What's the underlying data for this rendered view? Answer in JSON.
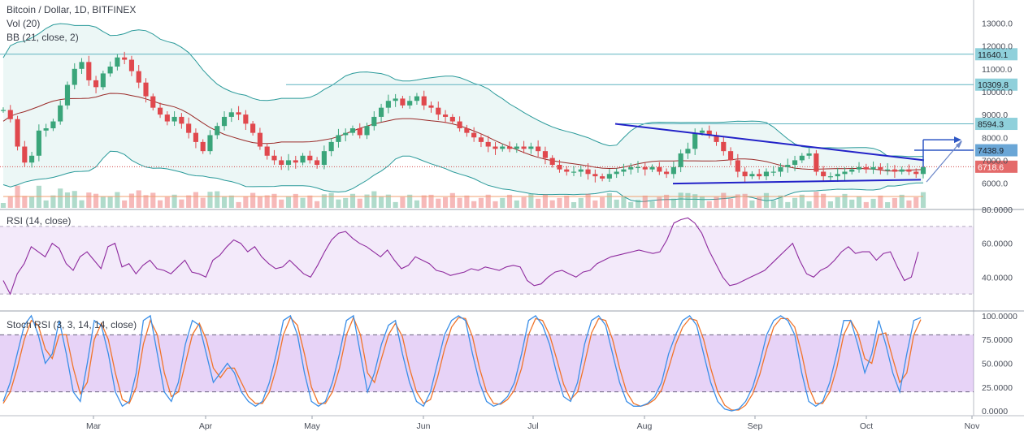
{
  "chart_data": [
    {
      "type": "candlestick",
      "panel": "price",
      "title": "Bitcoin / Dollar, 1D, BITFINEX",
      "indicators": [
        "Vol (20)",
        "BB (21, close, 2)"
      ],
      "y_ticks": [
        "13000.0",
        "12000.0",
        "11000.0",
        "10000.0",
        "9000.0",
        "8000.0",
        "7000.0",
        "6000.0"
      ],
      "y_tick_values": [
        13000,
        12000,
        11000,
        10000,
        9000,
        8000,
        7000,
        6000
      ],
      "y_range": [
        5700,
        13800
      ],
      "horizontal_levels": [
        {
          "label": "11640.1",
          "value": 11640.1
        },
        {
          "label": "10309.8",
          "value": 10309.8
        },
        {
          "label": "8594.3",
          "value": 8594.3
        },
        {
          "label": "7438.9",
          "value": 7438.9
        }
      ],
      "last_price": {
        "label": "6718.6",
        "value": 6718.6
      },
      "close_series": [
        9200,
        8800,
        7600,
        6900,
        7200,
        8300,
        8400,
        8700,
        9400,
        10300,
        11000,
        11300,
        10500,
        10200,
        10800,
        11100,
        11500,
        11400,
        10900,
        10400,
        9800,
        9300,
        9000,
        8700,
        8900,
        8600,
        8200,
        7800,
        7400,
        8100,
        8500,
        8900,
        9100,
        9000,
        8600,
        8200,
        7600,
        7200,
        7000,
        6800,
        7000,
        6900,
        7200,
        7000,
        6800,
        7400,
        7800,
        8100,
        8200,
        8400,
        8100,
        8500,
        8900,
        9300,
        9600,
        9700,
        9400,
        9600,
        9800,
        9400,
        9300,
        9000,
        8900,
        8700,
        8400,
        8200,
        8000,
        7800,
        7600,
        7500,
        7600,
        7500,
        7600,
        7500,
        7600,
        7400,
        7100,
        6800,
        6600,
        6500,
        6500,
        6600,
        6400,
        6300,
        6200,
        6400,
        6500,
        6600,
        6700,
        6700,
        6600,
        6700,
        6500,
        6400,
        6700,
        7300,
        7500,
        8200,
        8300,
        8100,
        7800,
        7400,
        7000,
        6500,
        6300,
        6400,
        6300,
        6500,
        6500,
        6700,
        6800,
        7000,
        7200,
        7300,
        6500,
        6300,
        6300,
        6400,
        6500,
        6600,
        6700,
        6600,
        6700,
        6600,
        6600,
        6500,
        6600,
        6500,
        6400,
        6700
      ],
      "x_labels": [
        "Mar",
        "Apr",
        "May",
        "Jun",
        "Jul",
        "Aug",
        "Sep",
        "Oct",
        "Nov"
      ]
    },
    {
      "type": "line",
      "panel": "rsi",
      "title": "RSI (14, close)",
      "y_ticks": [
        "80.0000",
        "60.0000",
        "40.0000"
      ],
      "y_tick_values": [
        80,
        60,
        40
      ],
      "y_range": [
        20,
        80
      ],
      "band": [
        30,
        70
      ],
      "series": [
        {
          "values": [
            38,
            30,
            42,
            48,
            58,
            55,
            52,
            60,
            57,
            48,
            44,
            52,
            55,
            50,
            45,
            58,
            60,
            46,
            48,
            42,
            47,
            50,
            45,
            44,
            42,
            46,
            50,
            43,
            42,
            40,
            50,
            53,
            58,
            62,
            60,
            55,
            58,
            52,
            48,
            45,
            46,
            50,
            46,
            42,
            40,
            47,
            55,
            62,
            66,
            67,
            63,
            60,
            58,
            55,
            52,
            56,
            50,
            45,
            47,
            52,
            50,
            48,
            44,
            43,
            41,
            42,
            43,
            45,
            44,
            46,
            45,
            44,
            46,
            47,
            46,
            38,
            35,
            36,
            40,
            43,
            44,
            42,
            40,
            43,
            44,
            48,
            50,
            52,
            53,
            54,
            55,
            56,
            55,
            54,
            55,
            62,
            72,
            74,
            75,
            72,
            66,
            56,
            48,
            40,
            35,
            36,
            38,
            40,
            42,
            44,
            48,
            52,
            56,
            60,
            50,
            42,
            40,
            44,
            46,
            50,
            55,
            58,
            54,
            55,
            55,
            50,
            54,
            55,
            46,
            38,
            40,
            55
          ]
        }
      ]
    },
    {
      "type": "line",
      "panel": "stoch_rsi",
      "title": "Stoch RSI (3, 3, 14, 14, close)",
      "y_ticks": [
        "100.0000",
        "75.0000",
        "50.0000",
        "25.0000",
        "0.0000"
      ],
      "y_tick_values": [
        100,
        75,
        50,
        25,
        0
      ],
      "y_range": [
        -5,
        105
      ],
      "band": [
        20,
        80
      ],
      "series": [
        {
          "values": [
            10,
            30,
            60,
            90,
            100,
            80,
            50,
            60,
            95,
            60,
            20,
            10,
            50,
            95,
            90,
            60,
            20,
            5,
            10,
            40,
            95,
            100,
            60,
            20,
            10,
            30,
            70,
            95,
            90,
            60,
            30,
            40,
            50,
            40,
            20,
            10,
            5,
            10,
            30,
            60,
            95,
            100,
            80,
            40,
            10,
            5,
            10,
            30,
            60,
            95,
            100,
            60,
            20,
            40,
            70,
            90,
            95,
            60,
            30,
            10,
            5,
            20,
            50,
            80,
            95,
            100,
            95,
            60,
            30,
            10,
            5,
            8,
            15,
            30,
            60,
            95,
            100,
            90,
            70,
            40,
            15,
            10,
            30,
            70,
            95,
            100,
            90,
            60,
            30,
            10,
            5,
            5,
            8,
            15,
            30,
            60,
            80,
            95,
            100,
            90,
            60,
            30,
            10,
            2,
            0,
            2,
            10,
            25,
            50,
            80,
            95,
            100,
            95,
            80,
            40,
            10,
            5,
            10,
            30,
            60,
            95,
            95,
            70,
            40,
            60,
            95,
            70,
            40,
            20,
            60,
            95,
            98
          ]
        },
        {
          "values": [
            8,
            20,
            45,
            75,
            95,
            90,
            65,
            55,
            80,
            80,
            45,
            18,
            30,
            75,
            92,
            75,
            40,
            12,
            8,
            25,
            70,
            95,
            80,
            40,
            15,
            20,
            50,
            80,
            92,
            75,
            45,
            35,
            45,
            45,
            30,
            15,
            8,
            8,
            20,
            45,
            80,
            98,
            90,
            60,
            25,
            8,
            8,
            20,
            45,
            80,
            98,
            80,
            40,
            30,
            55,
            80,
            92,
            78,
            45,
            20,
            8,
            12,
            35,
            65,
            88,
            98,
            97,
            78,
            45,
            20,
            8,
            7,
            12,
            22,
            45,
            80,
            97,
            95,
            80,
            55,
            28,
            12,
            20,
            50,
            82,
            97,
            95,
            75,
            45,
            20,
            8,
            5,
            7,
            12,
            22,
            45,
            70,
            88,
            97,
            95,
            75,
            45,
            20,
            6,
            1,
            1,
            6,
            18,
            38,
            65,
            88,
            97,
            97,
            88,
            60,
            25,
            8,
            8,
            20,
            45,
            80,
            95,
            82,
            55,
            50,
            80,
            82,
            55,
            30,
            40,
            80,
            96
          ]
        }
      ]
    }
  ]
}
